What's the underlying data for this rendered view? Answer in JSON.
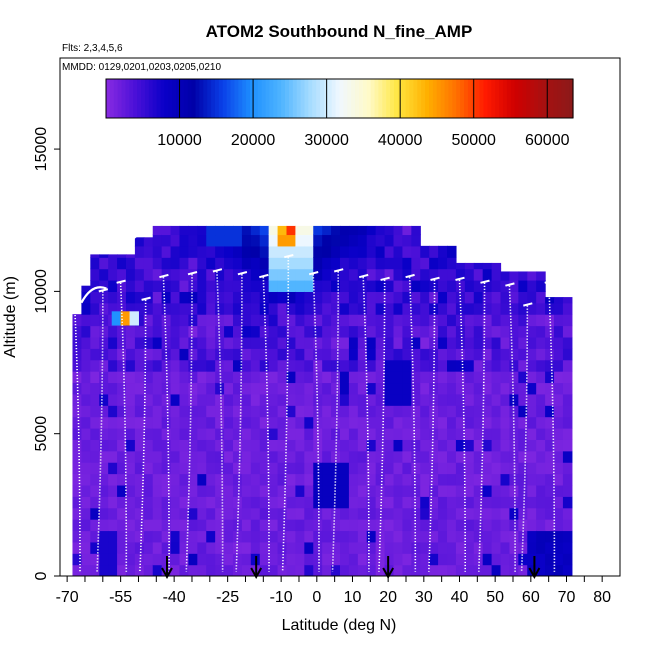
{
  "chart_data": {
    "type": "heatmap",
    "title": "ATOM2 Southbound N_fine_AMP",
    "subtitle_flights": "Flts: 2,3,4,5,6",
    "subtitle_dates": "MMDD: 0129,0201,0203,0205,0210",
    "xlabel": "Latitude (deg N)",
    "ylabel": "Altitude (m)",
    "xlim": [
      -72,
      85
    ],
    "ylim": [
      0,
      18200
    ],
    "x_ticks": [
      -70,
      -55,
      -40,
      -25,
      -10,
      0,
      10,
      20,
      30,
      40,
      50,
      60,
      70,
      80
    ],
    "x_minor_ticks": [
      -65,
      -60,
      -50,
      -45,
      -35,
      -30,
      -20,
      -15,
      -5,
      5,
      15,
      25,
      35,
      45,
      55,
      65,
      75
    ],
    "y_ticks": [
      0,
      5000,
      10000,
      15000
    ],
    "colorbar": {
      "min": 0,
      "max": 63500,
      "ticks": [
        10000,
        20000,
        30000,
        40000,
        50000,
        60000
      ],
      "colors": [
        "#8a2be2",
        "#4b10d8",
        "#0a00c8",
        "#0000a8",
        "#0a40e8",
        "#1e90ff",
        "#4fb4ff",
        "#a6dcff",
        "#f0f8ff",
        "#fffac8",
        "#ffe640",
        "#ffb000",
        "#ff7000",
        "#ff1a00",
        "#d00000",
        "#a81010",
        "#8b1a1a"
      ]
    },
    "flight_marker_latitudes": [
      -42,
      -17,
      20,
      61
    ],
    "aircraft_profiles": [
      {
        "lat": -68,
        "top": 9800
      },
      {
        "lat": -60,
        "top": 10000
      },
      {
        "lat": -55,
        "top": 10300
      },
      {
        "lat": -48,
        "top": 9700
      },
      {
        "lat": -43,
        "top": 10500
      },
      {
        "lat": -35,
        "top": 10600
      },
      {
        "lat": -28,
        "top": 10700
      },
      {
        "lat": -21,
        "top": 10600
      },
      {
        "lat": -15,
        "top": 10500
      },
      {
        "lat": -8,
        "top": 11200
      },
      {
        "lat": -1,
        "top": 10600
      },
      {
        "lat": 6,
        "top": 10700
      },
      {
        "lat": 13,
        "top": 10500
      },
      {
        "lat": 19,
        "top": 10400
      },
      {
        "lat": 26,
        "top": 10500
      },
      {
        "lat": 33,
        "top": 10400
      },
      {
        "lat": 40,
        "top": 10400
      },
      {
        "lat": 47,
        "top": 10300
      },
      {
        "lat": 54,
        "top": 10200
      },
      {
        "lat": 59,
        "top": 9500
      },
      {
        "lat": 65,
        "top": 10300
      }
    ]
  }
}
